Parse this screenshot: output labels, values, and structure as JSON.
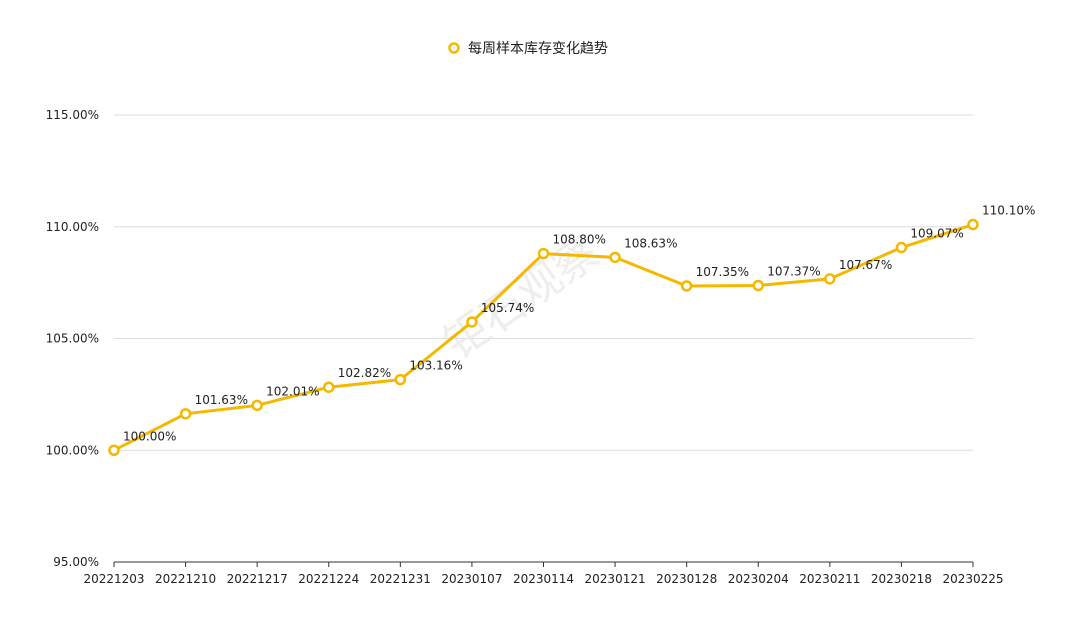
{
  "chart_data": {
    "type": "line",
    "title": "",
    "legend": {
      "position": "top-center",
      "entries": [
        "每周样本库存变化趋势"
      ]
    },
    "watermark": "钜石观察",
    "categories": [
      "20221203",
      "20221210",
      "20221217",
      "20221224",
      "20221231",
      "20230107",
      "20230114",
      "20230121",
      "20230128",
      "20230204",
      "20230211",
      "20230218",
      "20230225"
    ],
    "series": [
      {
        "name": "每周样本库存变化趋势",
        "color": "#f5b800",
        "values": [
          100.0,
          101.63,
          102.01,
          102.82,
          103.16,
          105.74,
          108.8,
          108.63,
          107.35,
          107.37,
          107.67,
          109.07,
          110.1
        ],
        "data_labels": [
          "100.00%",
          "101.63%",
          "102.01%",
          "102.82%",
          "103.16%",
          "105.74%",
          "108.80%",
          "108.63%",
          "107.35%",
          "107.37%",
          "107.67%",
          "109.07%",
          "110.10%"
        ]
      }
    ],
    "y_ticks": [
      95,
      100,
      105,
      110,
      115
    ],
    "y_tick_labels": [
      "95.00%",
      "100.00%",
      "105.00%",
      "110.00%",
      "115.00%"
    ],
    "ylim": [
      95,
      115
    ],
    "grid": true
  }
}
